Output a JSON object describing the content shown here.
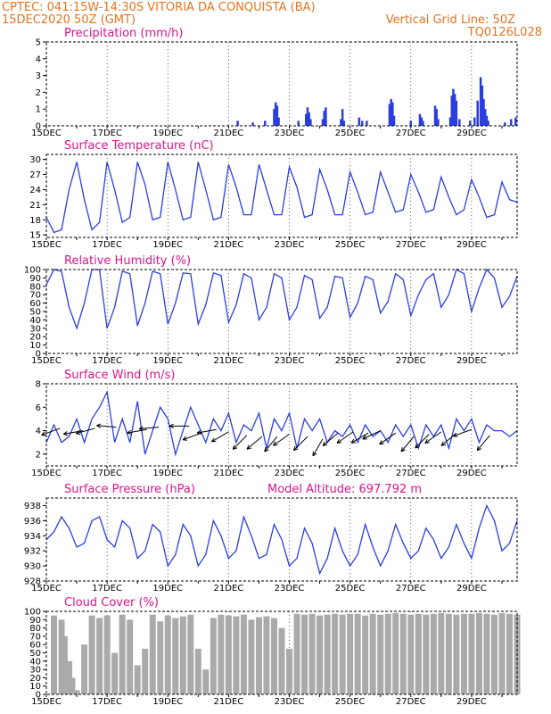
{
  "header": {
    "line1": "CPTEC:   041:15W-14:30S   VITORIA DA CONQUISTA (BA)",
    "line2": "15DEC2020 50Z (GMT)",
    "grid_note": "Vertical Grid Line: 50Z",
    "code": "TQ0126L028"
  },
  "colors": {
    "header": "#e8731c",
    "title": "#e0148c",
    "series": "#2a3ee0",
    "cloud": "#aaaaaa",
    "arrow": "#000000"
  },
  "x_tick_labels": [
    "15DEC",
    "17DEC",
    "19DEC",
    "21DEC",
    "23DEC",
    "25DEC",
    "27DEC",
    "29DEC"
  ],
  "chart_data": [
    {
      "type": "bar",
      "title": "Precipitation (mm/h)",
      "xlim": [
        0,
        15.5
      ],
      "ylim": [
        0,
        5
      ],
      "yticks": [
        0,
        1,
        2,
        3,
        4,
        5
      ],
      "x": [
        6.3,
        6.8,
        7.2,
        7.5,
        7.55,
        7.6,
        7.65,
        8.3,
        8.55,
        8.6,
        8.65,
        8.7,
        9.1,
        9.15,
        9.2,
        9.2,
        9.7,
        9.75,
        9.8,
        10.3,
        10.4,
        10.55,
        11.3,
        11.35,
        11.4,
        11.45,
        12.0,
        12.3,
        12.35,
        12.4,
        12.8,
        12.85,
        12.9,
        13.3,
        13.35,
        13.4,
        13.45,
        13.5,
        13.6,
        13.95,
        14.1,
        14.2,
        14.3,
        14.35,
        14.4,
        14.45,
        14.5,
        14.55,
        15.1,
        15.3,
        15.45
      ],
      "values": [
        0.3,
        0.2,
        0.3,
        1.0,
        1.4,
        1.2,
        0.5,
        0.3,
        0.7,
        1.1,
        0.8,
        0.4,
        0.4,
        0.9,
        1.1,
        0.3,
        0.4,
        1.0,
        0.3,
        0.5,
        0.3,
        0.3,
        1.3,
        1.6,
        1.4,
        0.6,
        0.3,
        0.7,
        0.5,
        0.3,
        1.2,
        1.0,
        0.4,
        0.5,
        1.8,
        2.2,
        1.9,
        1.5,
        0.4,
        0.3,
        0.5,
        1.5,
        2.9,
        2.4,
        1.6,
        1.0,
        0.6,
        0.3,
        0.2,
        0.4,
        0.5
      ]
    },
    {
      "type": "line",
      "title": "Surface Temperature (nC)",
      "xlim": [
        0,
        15.5
      ],
      "ylim": [
        14.5,
        31
      ],
      "yticks": [
        15,
        18,
        21,
        24,
        27,
        30
      ],
      "x": [
        0,
        0.25,
        0.5,
        0.75,
        1,
        1.25,
        1.5,
        1.75,
        2,
        2.25,
        2.5,
        2.75,
        3,
        3.25,
        3.5,
        3.75,
        4,
        4.25,
        4.5,
        4.75,
        5,
        5.25,
        5.5,
        5.75,
        6,
        6.25,
        6.5,
        6.75,
        7,
        7.25,
        7.5,
        7.75,
        8,
        8.25,
        8.5,
        8.75,
        9,
        9.25,
        9.5,
        9.75,
        10,
        10.25,
        10.5,
        10.75,
        11,
        11.25,
        11.5,
        11.75,
        12,
        12.25,
        12.5,
        12.75,
        13,
        13.25,
        13.5,
        13.75,
        14,
        14.25,
        14.5,
        14.75,
        15,
        15.25,
        15.5
      ],
      "series": [
        {
          "values": [
            18.5,
            15.5,
            16,
            24,
            29.5,
            22,
            16,
            17.5,
            29.5,
            24,
            17.5,
            18.5,
            29.5,
            25,
            18,
            18.5,
            29.5,
            24,
            18,
            18.5,
            29.5,
            24,
            18,
            18.5,
            29,
            24.5,
            19,
            19,
            29,
            24,
            19,
            19,
            28.5,
            24.5,
            18.5,
            19,
            28,
            24,
            19,
            19,
            27.5,
            23.5,
            19,
            19.5,
            27.5,
            23.5,
            19.5,
            20,
            27,
            23.5,
            19.5,
            20,
            26.5,
            22.5,
            19,
            20,
            26,
            22.5,
            18.5,
            19,
            25.5,
            22,
            21.5
          ]
        }
      ]
    },
    {
      "type": "line",
      "title": "Relative Humidity (%)",
      "xlim": [
        0,
        15.5
      ],
      "ylim": [
        0,
        100
      ],
      "yticks": [
        0,
        10,
        20,
        30,
        40,
        50,
        60,
        70,
        80,
        90,
        100
      ],
      "x": [
        0,
        0.25,
        0.5,
        0.75,
        1,
        1.25,
        1.5,
        1.75,
        2,
        2.25,
        2.5,
        2.75,
        3,
        3.25,
        3.5,
        3.75,
        4,
        4.25,
        4.5,
        4.75,
        5,
        5.25,
        5.5,
        5.75,
        6,
        6.25,
        6.5,
        6.75,
        7,
        7.25,
        7.5,
        7.75,
        8,
        8.25,
        8.5,
        8.75,
        9,
        9.25,
        9.5,
        9.75,
        10,
        10.25,
        10.5,
        10.75,
        11,
        11.25,
        11.5,
        11.75,
        12,
        12.25,
        12.5,
        12.75,
        13,
        13.25,
        13.5,
        13.75,
        14,
        14.25,
        14.5,
        14.75,
        15,
        15.25,
        15.5
      ],
      "series": [
        {
          "values": [
            82,
            100,
            98,
            55,
            30,
            60,
            100,
            100,
            30,
            55,
            98,
            95,
            33,
            60,
            98,
            95,
            35,
            60,
            96,
            95,
            35,
            58,
            96,
            93,
            37,
            58,
            95,
            90,
            40,
            55,
            95,
            90,
            40,
            55,
            93,
            88,
            42,
            55,
            92,
            90,
            43,
            60,
            92,
            88,
            48,
            62,
            95,
            88,
            45,
            70,
            88,
            95,
            55,
            70,
            100,
            95,
            50,
            78,
            100,
            90,
            55,
            68,
            92
          ]
        }
      ]
    },
    {
      "type": "line",
      "title": "Surface Wind (m/s)",
      "xlim": [
        0,
        15.5
      ],
      "ylim": [
        1,
        8
      ],
      "yticks": [
        2,
        4,
        6,
        8
      ],
      "x": [
        0,
        0.25,
        0.5,
        0.75,
        1,
        1.25,
        1.5,
        1.75,
        2,
        2.25,
        2.5,
        2.75,
        3,
        3.25,
        3.5,
        3.75,
        4,
        4.25,
        4.5,
        4.75,
        5,
        5.25,
        5.5,
        5.75,
        6,
        6.25,
        6.5,
        6.75,
        7,
        7.25,
        7.5,
        7.75,
        8,
        8.25,
        8.5,
        8.75,
        9,
        9.25,
        9.5,
        9.75,
        10,
        10.25,
        10.5,
        10.75,
        11,
        11.25,
        11.5,
        11.75,
        12,
        12.25,
        12.5,
        12.75,
        13,
        13.25,
        13.5,
        13.75,
        14,
        14.25,
        14.5,
        14.75,
        15,
        15.25,
        15.5
      ],
      "series": [
        {
          "values": [
            3,
            4.5,
            3,
            3.5,
            5,
            3,
            5,
            6,
            7.3,
            3,
            5,
            3,
            6.5,
            2,
            4,
            6,
            5,
            2,
            4,
            6,
            4.5,
            3,
            5,
            4,
            5.5,
            3,
            4.5,
            4,
            5.5,
            2.5,
            5,
            4,
            5.5,
            2.5,
            5,
            4,
            5,
            3,
            4,
            3.5,
            4.5,
            3,
            4.5,
            3.5,
            4,
            3,
            4.5,
            3.5,
            4.5,
            2.5,
            4.5,
            3.5,
            4.5,
            2.5,
            5,
            4,
            5,
            3,
            4.5,
            4,
            4,
            3.5,
            4
          ]
        }
      ],
      "arrows_x": [
        0.45,
        1.2,
        1.6,
        2.3,
        3.3,
        3.7,
        4.7,
        5.1,
        5.6,
        6.0,
        6.6,
        7.1,
        7.6,
        8.0,
        8.6,
        9.1,
        9.6,
        10.1,
        10.6,
        11.0,
        11.5,
        12.1,
        12.6,
        13.0,
        13.5,
        14.0,
        14.6
      ],
      "arrows_dir_deg": [
        200,
        190,
        195,
        175,
        190,
        185,
        180,
        200,
        190,
        210,
        225,
        220,
        230,
        215,
        225,
        240,
        220,
        215,
        210,
        205,
        215,
        230,
        225,
        215,
        220,
        200,
        230
      ],
      "arrows_speed": [
        4.2,
        4.0,
        4.2,
        4.3,
        4.1,
        4.3,
        4.4,
        3.8,
        4.1,
        3.9,
        3.6,
        3.5,
        3.5,
        3.7,
        3.5,
        3.3,
        3.8,
        3.9,
        3.8,
        4.0,
        3.8,
        3.5,
        3.7,
        3.9,
        3.8,
        4.1,
        3.6
      ]
    },
    {
      "type": "line",
      "title": "Surface Pressure (hPa)",
      "note": "Model Altitude: 697.792  m",
      "xlim": [
        0,
        15.5
      ],
      "ylim": [
        928,
        939
      ],
      "yticks": [
        928,
        930,
        932,
        934,
        936,
        938
      ],
      "x": [
        0,
        0.25,
        0.5,
        0.75,
        1,
        1.25,
        1.5,
        1.75,
        2,
        2.25,
        2.5,
        2.75,
        3,
        3.25,
        3.5,
        3.75,
        4,
        4.25,
        4.5,
        4.75,
        5,
        5.25,
        5.5,
        5.75,
        6,
        6.25,
        6.5,
        6.75,
        7,
        7.25,
        7.5,
        7.75,
        8,
        8.25,
        8.5,
        8.75,
        9,
        9.25,
        9.5,
        9.75,
        10,
        10.25,
        10.5,
        10.75,
        11,
        11.25,
        11.5,
        11.75,
        12,
        12.25,
        12.5,
        12.75,
        13,
        13.25,
        13.5,
        13.75,
        14,
        14.25,
        14.5,
        14.75,
        15,
        15.25,
        15.5
      ],
      "series": [
        {
          "values": [
            933.5,
            934.5,
            936.5,
            935,
            932.5,
            933,
            936,
            936.5,
            933.5,
            932.5,
            936,
            935,
            931,
            932,
            935.5,
            934.5,
            930,
            931.5,
            935.5,
            934,
            930,
            931.5,
            936,
            934,
            931,
            932,
            936.5,
            934,
            931,
            931.5,
            935.5,
            933.5,
            930,
            931,
            935,
            933,
            929,
            931,
            935,
            932,
            930,
            931.5,
            935.5,
            932.5,
            930,
            932,
            935.5,
            933,
            931,
            932,
            935,
            933.5,
            931,
            932.5,
            935.5,
            933,
            931,
            935,
            938,
            936,
            932,
            933,
            936
          ]
        }
      ]
    },
    {
      "type": "bar",
      "title": "Cloud Cover (%)",
      "xlim": [
        0,
        15.5
      ],
      "ylim": [
        0,
        100
      ],
      "yticks": [
        0,
        10,
        20,
        30,
        40,
        50,
        60,
        70,
        80,
        90,
        100
      ],
      "x": [
        0.25,
        0.5,
        0.6,
        0.75,
        0.85,
        1.0,
        1.25,
        1.5,
        1.75,
        2.0,
        2.25,
        2.5,
        2.75,
        3.0,
        3.25,
        3.5,
        3.75,
        4.0,
        4.25,
        4.5,
        4.75,
        5.0,
        5.25,
        5.5,
        5.75,
        6.0,
        6.25,
        6.5,
        6.75,
        7.0,
        7.25,
        7.5,
        7.75,
        8.0,
        8.25,
        8.5,
        8.75,
        9.0,
        9.25,
        9.5,
        9.75,
        10.0,
        10.25,
        10.5,
        10.75,
        11.0,
        11.25,
        11.5,
        11.75,
        12.0,
        12.25,
        12.5,
        12.75,
        13.0,
        13.25,
        13.5,
        13.75,
        14.0,
        14.25,
        14.5,
        14.75,
        15.0,
        15.25,
        15.5
      ],
      "values": [
        95,
        90,
        70,
        40,
        20,
        5,
        60,
        95,
        92,
        95,
        50,
        96,
        90,
        35,
        55,
        96,
        88,
        95,
        92,
        94,
        96,
        55,
        30,
        92,
        96,
        95,
        94,
        96,
        90,
        93,
        94,
        92,
        80,
        55,
        97,
        96,
        97,
        95,
        96,
        97,
        96,
        97,
        97,
        95,
        97,
        96,
        97,
        98,
        97,
        96,
        97,
        96,
        97,
        98,
        97,
        96,
        97,
        97,
        98,
        97,
        96,
        98,
        97,
        96
      ]
    }
  ]
}
